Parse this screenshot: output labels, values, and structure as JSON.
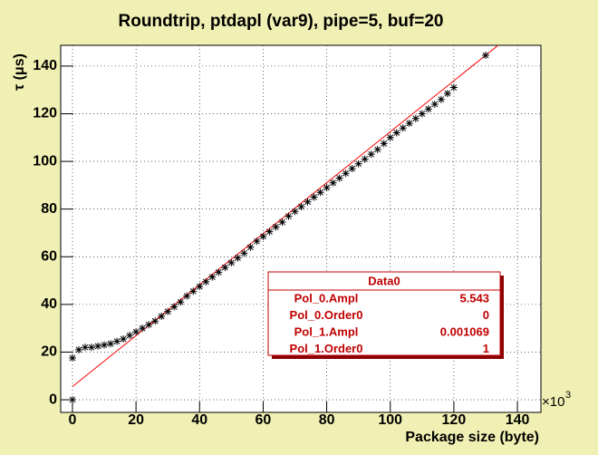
{
  "chart_data": {
    "type": "scatter",
    "title": "Roundtrip, ptdapl (var9), pipe=5, buf=20",
    "x_label": "Package size (byte)",
    "y_label": "τ (μs)",
    "x_multiplier": {
      "base": "×10",
      "exponent": 3
    },
    "xlim": [
      -3.7,
      147.4
    ],
    "ylim": [
      -5.3,
      148.7
    ],
    "xticks": [
      0,
      20,
      40,
      60,
      80,
      100,
      120,
      140
    ],
    "yticks": [
      0,
      20,
      40,
      60,
      80,
      100,
      120,
      140
    ],
    "grid": true,
    "series": [
      {
        "color": "#000000",
        "x": [
          0,
          0,
          2,
          4,
          6,
          8,
          10,
          12,
          14,
          16,
          18,
          20,
          22,
          24,
          26,
          28,
          30,
          32,
          34,
          36,
          38,
          40,
          42,
          44,
          46,
          48,
          50,
          52,
          54,
          56,
          58,
          60,
          62,
          64,
          66,
          68,
          70,
          72,
          74,
          76,
          78,
          80,
          82,
          84,
          86,
          88,
          90,
          92,
          94,
          96,
          98,
          100,
          102,
          104,
          106,
          108,
          110,
          112,
          114,
          116,
          118,
          120,
          130
        ],
        "values": [
          0,
          17.5,
          21,
          22,
          22,
          22.5,
          23,
          23.5,
          24.5,
          25.5,
          27,
          28.5,
          30,
          31.5,
          33,
          35,
          37,
          39,
          41,
          43.5,
          45.5,
          47.5,
          49.5,
          51.5,
          53.5,
          55.5,
          57.5,
          59.5,
          61.5,
          64,
          66.5,
          68.5,
          70.5,
          72.5,
          74.5,
          77,
          79,
          81,
          83,
          85,
          87,
          89,
          91,
          93,
          95,
          97,
          99,
          101,
          103,
          105,
          107.5,
          110,
          112,
          114,
          116,
          118,
          120,
          122,
          124,
          126,
          128.5,
          131,
          144.5
        ]
      }
    ],
    "fit": {
      "color": "#ff0000",
      "box_title": "Data0",
      "params": [
        {
          "name": "Pol_0.Ampl",
          "value": 5.543
        },
        {
          "name": "Pol_0.Order0",
          "value": 0
        },
        {
          "name": "Pol_1.Ampl",
          "value": 0.001069
        },
        {
          "name": "Pol_1.Order0",
          "value": 1
        }
      ]
    }
  }
}
